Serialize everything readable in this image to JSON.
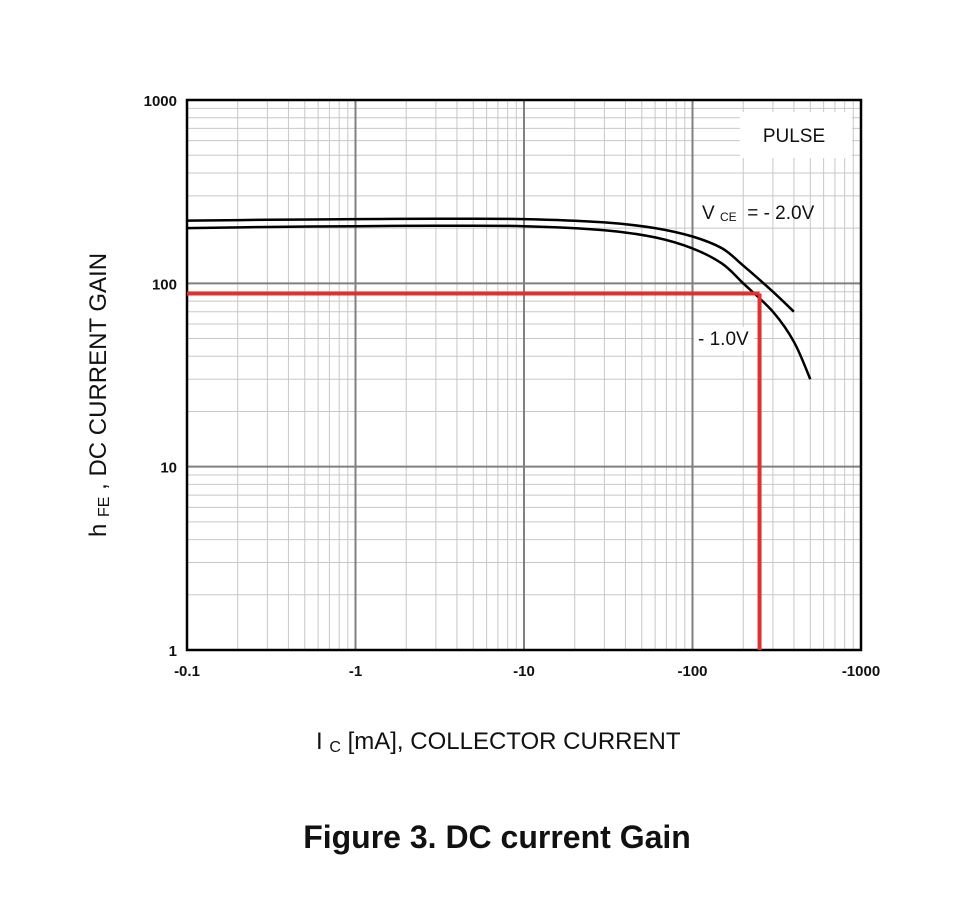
{
  "chart_data": {
    "type": "line",
    "xscale": "log",
    "yscale": "log",
    "xlim": [
      -0.1,
      -1000
    ],
    "ylim": [
      1,
      1000
    ],
    "grid": true,
    "x_ticks": [
      -0.1,
      -1,
      -10,
      -100,
      -1000
    ],
    "x_tick_labels": [
      "-0.1",
      "-1",
      "-10",
      "-100",
      "-1000"
    ],
    "y_ticks": [
      1,
      10,
      100,
      1000
    ],
    "y_tick_labels": [
      "1",
      "10",
      "100",
      "1000"
    ],
    "xlabel": {
      "prefix": "I",
      "sub": "C",
      "suffix": "[mA], COLLECTOR CURRENT"
    },
    "ylabel": {
      "prefix": "h",
      "sub": "FE",
      "suffix": ", DC CURRENT GAIN"
    },
    "caption": "Figure 3. DC current Gain",
    "legend_box": {
      "text": "PULSE",
      "placement": "top-right"
    },
    "series": [
      {
        "label": {
          "prefix": "V",
          "sub": "CE",
          "suffix": " = - 2.0V"
        },
        "x": [
          -0.1,
          -0.3,
          -1,
          -3,
          -10,
          -30,
          -60,
          -100,
          -150,
          -200,
          -300,
          -400
        ],
        "y": [
          220,
          222,
          224,
          225,
          224,
          215,
          200,
          180,
          155,
          125,
          90,
          70
        ]
      },
      {
        "label": {
          "prefix": "",
          "sub": "",
          "suffix": "- 1.0V"
        },
        "x": [
          -0.1,
          -0.3,
          -1,
          -3,
          -10,
          -30,
          -60,
          -100,
          -150,
          -200,
          -300,
          -400,
          -500
        ],
        "y": [
          200,
          203,
          205,
          206,
          205,
          195,
          178,
          155,
          128,
          100,
          70,
          48,
          30
        ]
      }
    ],
    "reference_lines": {
      "x": -250,
      "y": 88,
      "color": "#e03030"
    },
    "colors": {
      "curve": "#000000",
      "reference": "#e03030",
      "grid_major": "#808080",
      "grid_minor": "#c8c8c8"
    }
  }
}
